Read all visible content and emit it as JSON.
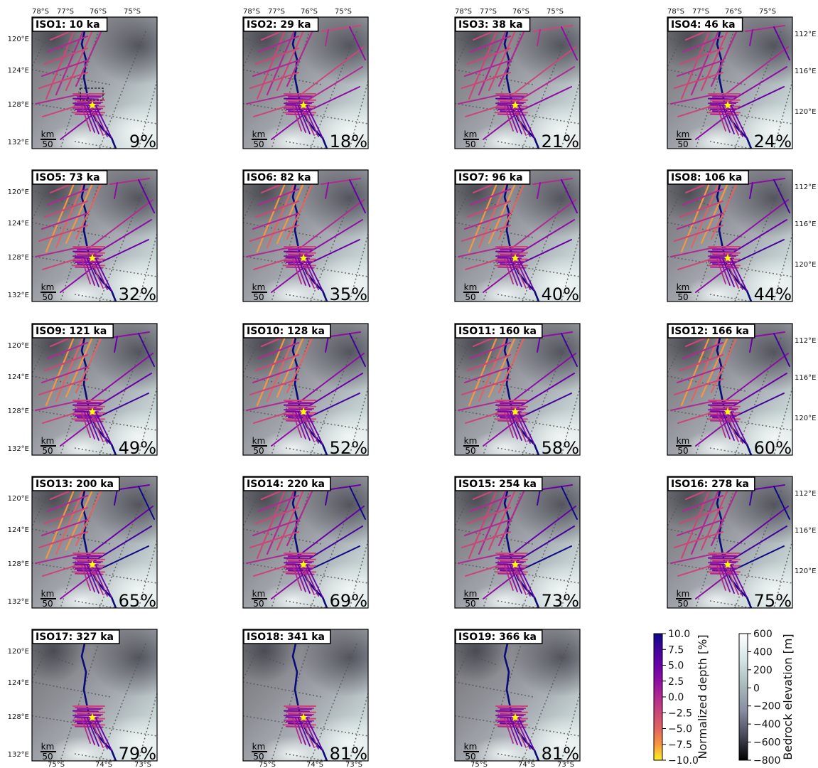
{
  "chart_data": {
    "type": "map-grid",
    "panels": [
      {
        "label": "ISO1: 10 ka",
        "percent": "9%",
        "show_box": true
      },
      {
        "label": "ISO2: 29 ka",
        "percent": "18%"
      },
      {
        "label": "ISO3: 38 ka",
        "percent": "21%"
      },
      {
        "label": "ISO4: 46 ka",
        "percent": "24%"
      },
      {
        "label": "ISO5: 73 ka",
        "percent": "32%"
      },
      {
        "label": "ISO6: 82 ka",
        "percent": "35%"
      },
      {
        "label": "ISO7: 96 ka",
        "percent": "40%"
      },
      {
        "label": "ISO8: 106 ka",
        "percent": "44%"
      },
      {
        "label": "ISO9: 121 ka",
        "percent": "49%"
      },
      {
        "label": "ISO10: 128 ka",
        "percent": "52%"
      },
      {
        "label": "ISO11: 160 ka",
        "percent": "58%"
      },
      {
        "label": "ISO12: 166 ka",
        "percent": "60%"
      },
      {
        "label": "ISO13: 200 ka",
        "percent": "65%"
      },
      {
        "label": "ISO14: 220 ka",
        "percent": "69%"
      },
      {
        "label": "ISO15: 254 ka",
        "percent": "73%"
      },
      {
        "label": "ISO16: 278 ka",
        "percent": "75%"
      },
      {
        "label": "ISO17: 327 ka",
        "percent": "79%"
      },
      {
        "label": "ISO18: 341 ka",
        "percent": "81%"
      },
      {
        "label": "ISO19: 366 ka",
        "percent": "81%"
      }
    ],
    "top_lat_ticks": [
      "78°S",
      "77°S",
      "76°S",
      "75°S"
    ],
    "bottom_lat_ticks": [
      "75°S",
      "74°S",
      "73°S"
    ],
    "left_lon_ticks": [
      "120°E",
      "124°E",
      "128°E",
      "132°E"
    ],
    "right_lon_ticks": [
      "112°E",
      "116°E",
      "120°E"
    ],
    "scale_bar": {
      "unit": "km",
      "value": "50"
    },
    "colorbar_depth": {
      "label": "Normalized depth [%]",
      "ticks": [
        "10.0",
        "7.5",
        "5.0",
        "2.5",
        "0.0",
        "−2.5",
        "−5.0",
        "−7.5",
        "−10.0"
      ],
      "range": [
        -10,
        10
      ],
      "colormap": "plasma (reversed)",
      "colors": [
        "#fcf225",
        "#f89540",
        "#e16462",
        "#cc4778",
        "#b12a90",
        "#8f0da4",
        "#6a00a8",
        "#41049d",
        "#0d0887"
      ]
    },
    "colorbar_bedrock": {
      "label": "Bedrock elevation [m]",
      "ticks": [
        "600",
        "400",
        "200",
        "0",
        "−200",
        "−400",
        "−600",
        "−800"
      ],
      "range": [
        -800,
        600
      ],
      "colormap": "bone",
      "colors": [
        "#050507",
        "#3d3d4b",
        "#76768e",
        "#9aa9b2",
        "#c3d5d5",
        "#ffffff"
      ]
    },
    "star_color": "#ffff00",
    "river_color": "#0b0b7a"
  }
}
